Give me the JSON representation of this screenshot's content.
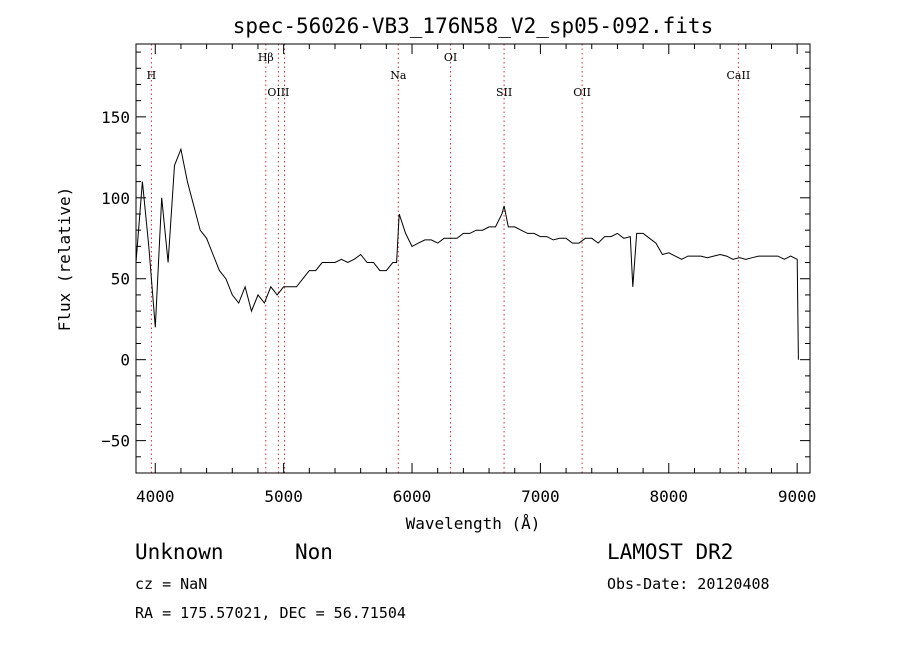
{
  "chart_data": {
    "type": "line",
    "title": "spec-56026-VB3_176N58_V2_sp05-092.fits",
    "xlabel": "Wavelength (Å)",
    "ylabel": "Flux (relative)",
    "xlim": [
      3850,
      9100
    ],
    "ylim": [
      -70,
      195
    ],
    "xticks": [
      4000,
      5000,
      6000,
      7000,
      8000,
      9000
    ],
    "yticks": [
      -50,
      0,
      50,
      100,
      150
    ],
    "grid": false,
    "line_color": "#000000",
    "marker_color": "#cc3333",
    "lines": [
      {
        "label": "H",
        "x": 3970,
        "tier": "top"
      },
      {
        "label": "Hβ",
        "x": 4861,
        "tier": "upper"
      },
      {
        "label": "OIII",
        "x": 4959,
        "tier": "lower"
      },
      {
        "label": "OIII_2",
        "label_text": "",
        "x": 5007,
        "tier": "none"
      },
      {
        "label": "Na",
        "x": 5893,
        "tier": "top"
      },
      {
        "label": "OI",
        "x": 6300,
        "tier": "upper"
      },
      {
        "label": "SII",
        "x": 6717,
        "tier": "lower"
      },
      {
        "label": "OII",
        "x": 7325,
        "tier": "lower"
      },
      {
        "label": "CaII",
        "x": 8542,
        "tier": "top"
      }
    ],
    "series": [
      {
        "x": [
          3850,
          3900,
          3950,
          4000,
          4050,
          4100,
          4150,
          4200,
          4250,
          4300,
          4350,
          4400,
          4450,
          4500,
          4550,
          4600,
          4650,
          4700,
          4750,
          4800,
          4850,
          4900,
          4950,
          5000,
          5050,
          5100,
          5150,
          5200,
          5250,
          5300,
          5350,
          5400,
          5450,
          5500,
          5550,
          5600,
          5650,
          5700,
          5750,
          5800,
          5850,
          5880,
          5900,
          5950,
          6000,
          6050,
          6100,
          6150,
          6200,
          6250,
          6300,
          6350,
          6400,
          6450,
          6500,
          6550,
          6600,
          6650,
          6700,
          6717,
          6750,
          6800,
          6850,
          6900,
          6950,
          7000,
          7050,
          7100,
          7150,
          7200,
          7250,
          7300,
          7350,
          7400,
          7450,
          7500,
          7550,
          7600,
          7650,
          7700,
          7720,
          7750,
          7800,
          7850,
          7900,
          7950,
          8000,
          8050,
          8100,
          8150,
          8200,
          8250,
          8300,
          8350,
          8400,
          8450,
          8500,
          8550,
          8600,
          8650,
          8700,
          8750,
          8800,
          8850,
          8900,
          8950,
          9000,
          9010
        ],
        "y": [
          60,
          110,
          70,
          20,
          100,
          60,
          120,
          130,
          110,
          95,
          80,
          75,
          65,
          55,
          50,
          40,
          35,
          45,
          30,
          40,
          35,
          45,
          40,
          45,
          45,
          45,
          50,
          55,
          55,
          60,
          60,
          60,
          62,
          60,
          62,
          65,
          60,
          60,
          55,
          55,
          60,
          60,
          90,
          78,
          70,
          72,
          74,
          74,
          72,
          75,
          75,
          75,
          78,
          78,
          80,
          80,
          82,
          82,
          90,
          95,
          82,
          82,
          80,
          78,
          78,
          76,
          76,
          74,
          75,
          75,
          72,
          72,
          75,
          75,
          72,
          76,
          76,
          78,
          75,
          76,
          45,
          78,
          78,
          75,
          72,
          65,
          66,
          64,
          62,
          64,
          64,
          64,
          63,
          64,
          65,
          64,
          62,
          63,
          62,
          63,
          64,
          64,
          64,
          64,
          62,
          64,
          62,
          0
        ]
      }
    ],
    "info": {
      "class": "Unknown",
      "subclass": "Non",
      "survey": "LAMOST DR2",
      "cz": "cz = NaN",
      "obs_date": "Obs-Date: 20120408",
      "radec": "RA = 175.57021, DEC =  56.71504"
    }
  }
}
